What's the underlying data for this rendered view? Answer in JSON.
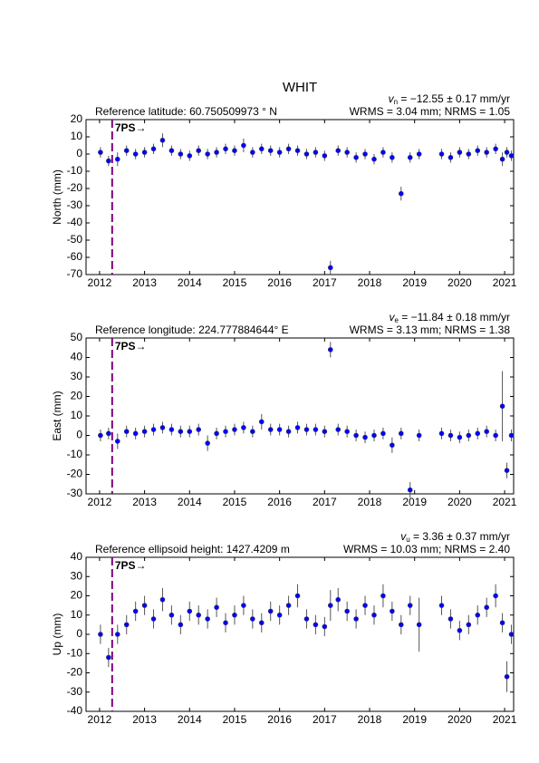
{
  "chart_data": [
    {
      "type": "scatter",
      "title": "WHIT",
      "ylabel": "North (mm)",
      "reference": "Reference latitude: 60.750509973 ° N",
      "velocity": {
        "symbol": "v",
        "subscript": "n",
        "text": " = −12.55 ± 0.17 mm/yr"
      },
      "stats": "WRMS = 3.04 mm; NRMS = 1.05",
      "event": {
        "label": "7PS→",
        "x": 2012.28,
        "color": "#800080"
      },
      "xlim": [
        2011.7,
        2021.2
      ],
      "xticks": [
        2012,
        2013,
        2014,
        2015,
        2016,
        2017,
        2018,
        2019,
        2020,
        2021
      ],
      "ylim": [
        -70,
        20
      ],
      "yticks": [
        -70,
        -60,
        -50,
        -40,
        -30,
        -20,
        -10,
        0,
        10,
        20
      ],
      "color": "#0000ff",
      "error_color": "#555555",
      "x": [
        2012.02,
        2012.2,
        2012.4,
        2012.6,
        2012.8,
        2013.0,
        2013.2,
        2013.4,
        2013.6,
        2013.8,
        2014.0,
        2014.2,
        2014.4,
        2014.6,
        2014.8,
        2015.0,
        2015.2,
        2015.4,
        2015.6,
        2015.8,
        2016.0,
        2016.2,
        2016.4,
        2016.6,
        2016.8,
        2017.0,
        2017.13,
        2017.3,
        2017.5,
        2017.7,
        2017.9,
        2018.1,
        2018.3,
        2018.5,
        2018.7,
        2018.9,
        2019.1,
        2019.6,
        2019.8,
        2020.0,
        2020.2,
        2020.4,
        2020.6,
        2020.8,
        2020.95,
        2021.05,
        2021.15
      ],
      "values": [
        1,
        -4,
        -3,
        2,
        0,
        1,
        3,
        8,
        2,
        0,
        -1,
        2,
        0,
        1,
        3,
        2,
        5,
        1,
        3,
        2,
        1,
        3,
        2,
        0,
        1,
        -1,
        -66,
        2,
        1,
        -2,
        0,
        -3,
        1,
        -2,
        -23,
        -2,
        0,
        0,
        -2,
        1,
        0,
        2,
        1,
        3,
        -3,
        1,
        -1
      ],
      "errors": [
        3,
        3,
        4,
        3,
        3,
        3,
        3,
        4,
        3,
        3,
        3,
        3,
        3,
        3,
        3,
        3,
        4,
        3,
        3,
        3,
        3,
        3,
        3,
        3,
        3,
        3,
        4,
        3,
        3,
        3,
        3,
        3,
        3,
        3,
        4,
        3,
        3,
        3,
        3,
        3,
        3,
        3,
        3,
        3,
        4,
        3,
        3
      ]
    },
    {
      "type": "scatter",
      "ylabel": "East (mm)",
      "reference": "Reference longitude: 224.777884644° E",
      "velocity": {
        "symbol": "v",
        "subscript": "e",
        "text": " = −11.84 ± 0.18 mm/yr"
      },
      "stats": "WRMS = 3.13 mm; NRMS = 1.38",
      "event": {
        "label": "7PS→",
        "x": 2012.28,
        "color": "#800080"
      },
      "xlim": [
        2011.7,
        2021.2
      ],
      "xticks": [
        2012,
        2013,
        2014,
        2015,
        2016,
        2017,
        2018,
        2019,
        2020,
        2021
      ],
      "ylim": [
        -30,
        50
      ],
      "yticks": [
        -30,
        -20,
        -10,
        0,
        10,
        20,
        30,
        40,
        50
      ],
      "color": "#0000ff",
      "error_color": "#555555",
      "x": [
        2012.02,
        2012.2,
        2012.4,
        2012.6,
        2012.8,
        2013.0,
        2013.2,
        2013.4,
        2013.6,
        2013.8,
        2014.0,
        2014.2,
        2014.4,
        2014.6,
        2014.8,
        2015.0,
        2015.2,
        2015.4,
        2015.6,
        2015.8,
        2016.0,
        2016.2,
        2016.4,
        2016.6,
        2016.8,
        2017.0,
        2017.13,
        2017.3,
        2017.5,
        2017.7,
        2017.9,
        2018.1,
        2018.3,
        2018.5,
        2018.7,
        2018.9,
        2019.1,
        2019.6,
        2019.8,
        2020.0,
        2020.2,
        2020.4,
        2020.6,
        2020.8,
        2020.95,
        2021.05,
        2021.15
      ],
      "values": [
        0,
        1,
        -3,
        2,
        1,
        2,
        3,
        4,
        3,
        2,
        2,
        3,
        -4,
        1,
        2,
        3,
        4,
        2,
        7,
        3,
        3,
        2,
        4,
        3,
        3,
        2,
        44,
        3,
        2,
        0,
        -1,
        0,
        1,
        -5,
        1,
        -28,
        0,
        1,
        0,
        -1,
        0,
        1,
        2,
        0,
        15,
        -18,
        0
      ],
      "errors": [
        3,
        3,
        4,
        3,
        3,
        3,
        3,
        3,
        3,
        3,
        3,
        3,
        4,
        3,
        3,
        3,
        3,
        3,
        4,
        3,
        3,
        3,
        3,
        3,
        3,
        3,
        4,
        3,
        3,
        3,
        3,
        3,
        3,
        4,
        3,
        4,
        3,
        3,
        3,
        3,
        3,
        3,
        3,
        3,
        18,
        4,
        3
      ]
    },
    {
      "type": "scatter",
      "ylabel": "Up (mm)",
      "reference": "Reference ellipsoid height: 1427.4209 m",
      "velocity": {
        "symbol": "v",
        "subscript": "u",
        "text": " = 3.36 ± 0.37 mm/yr"
      },
      "stats": "WRMS = 10.03 mm; NRMS = 2.40",
      "event": {
        "label": "7PS→",
        "x": 2012.28,
        "color": "#800080"
      },
      "xlim": [
        2011.7,
        2021.2
      ],
      "xticks": [
        2012,
        2013,
        2014,
        2015,
        2016,
        2017,
        2018,
        2019,
        2020,
        2021
      ],
      "ylim": [
        -40,
        40
      ],
      "yticks": [
        -40,
        -30,
        -20,
        -10,
        0,
        10,
        20,
        30,
        40
      ],
      "color": "#0000ff",
      "error_color": "#555555",
      "x": [
        2012.02,
        2012.2,
        2012.4,
        2012.6,
        2012.8,
        2013.0,
        2013.2,
        2013.4,
        2013.6,
        2013.8,
        2014.0,
        2014.2,
        2014.4,
        2014.6,
        2014.8,
        2015.0,
        2015.2,
        2015.4,
        2015.6,
        2015.8,
        2016.0,
        2016.2,
        2016.4,
        2016.6,
        2016.8,
        2017.0,
        2017.13,
        2017.3,
        2017.5,
        2017.7,
        2017.9,
        2018.1,
        2018.3,
        2018.5,
        2018.7,
        2018.9,
        2019.1,
        2019.6,
        2019.8,
        2020.0,
        2020.2,
        2020.4,
        2020.6,
        2020.8,
        2020.95,
        2021.05,
        2021.15
      ],
      "values": [
        0,
        -12,
        0,
        5,
        12,
        15,
        8,
        18,
        10,
        5,
        12,
        10,
        8,
        14,
        6,
        10,
        15,
        8,
        6,
        12,
        10,
        15,
        20,
        8,
        5,
        4,
        15,
        18,
        12,
        8,
        15,
        10,
        20,
        12,
        5,
        15,
        5,
        15,
        8,
        2,
        5,
        10,
        14,
        20,
        6,
        -22,
        0
      ],
      "errors": [
        5,
        5,
        5,
        5,
        5,
        5,
        5,
        6,
        5,
        5,
        5,
        5,
        5,
        5,
        5,
        5,
        5,
        5,
        5,
        5,
        5,
        5,
        6,
        5,
        5,
        5,
        8,
        6,
        5,
        5,
        5,
        5,
        6,
        5,
        5,
        5,
        14,
        5,
        5,
        5,
        5,
        5,
        5,
        6,
        5,
        8,
        5
      ]
    }
  ]
}
